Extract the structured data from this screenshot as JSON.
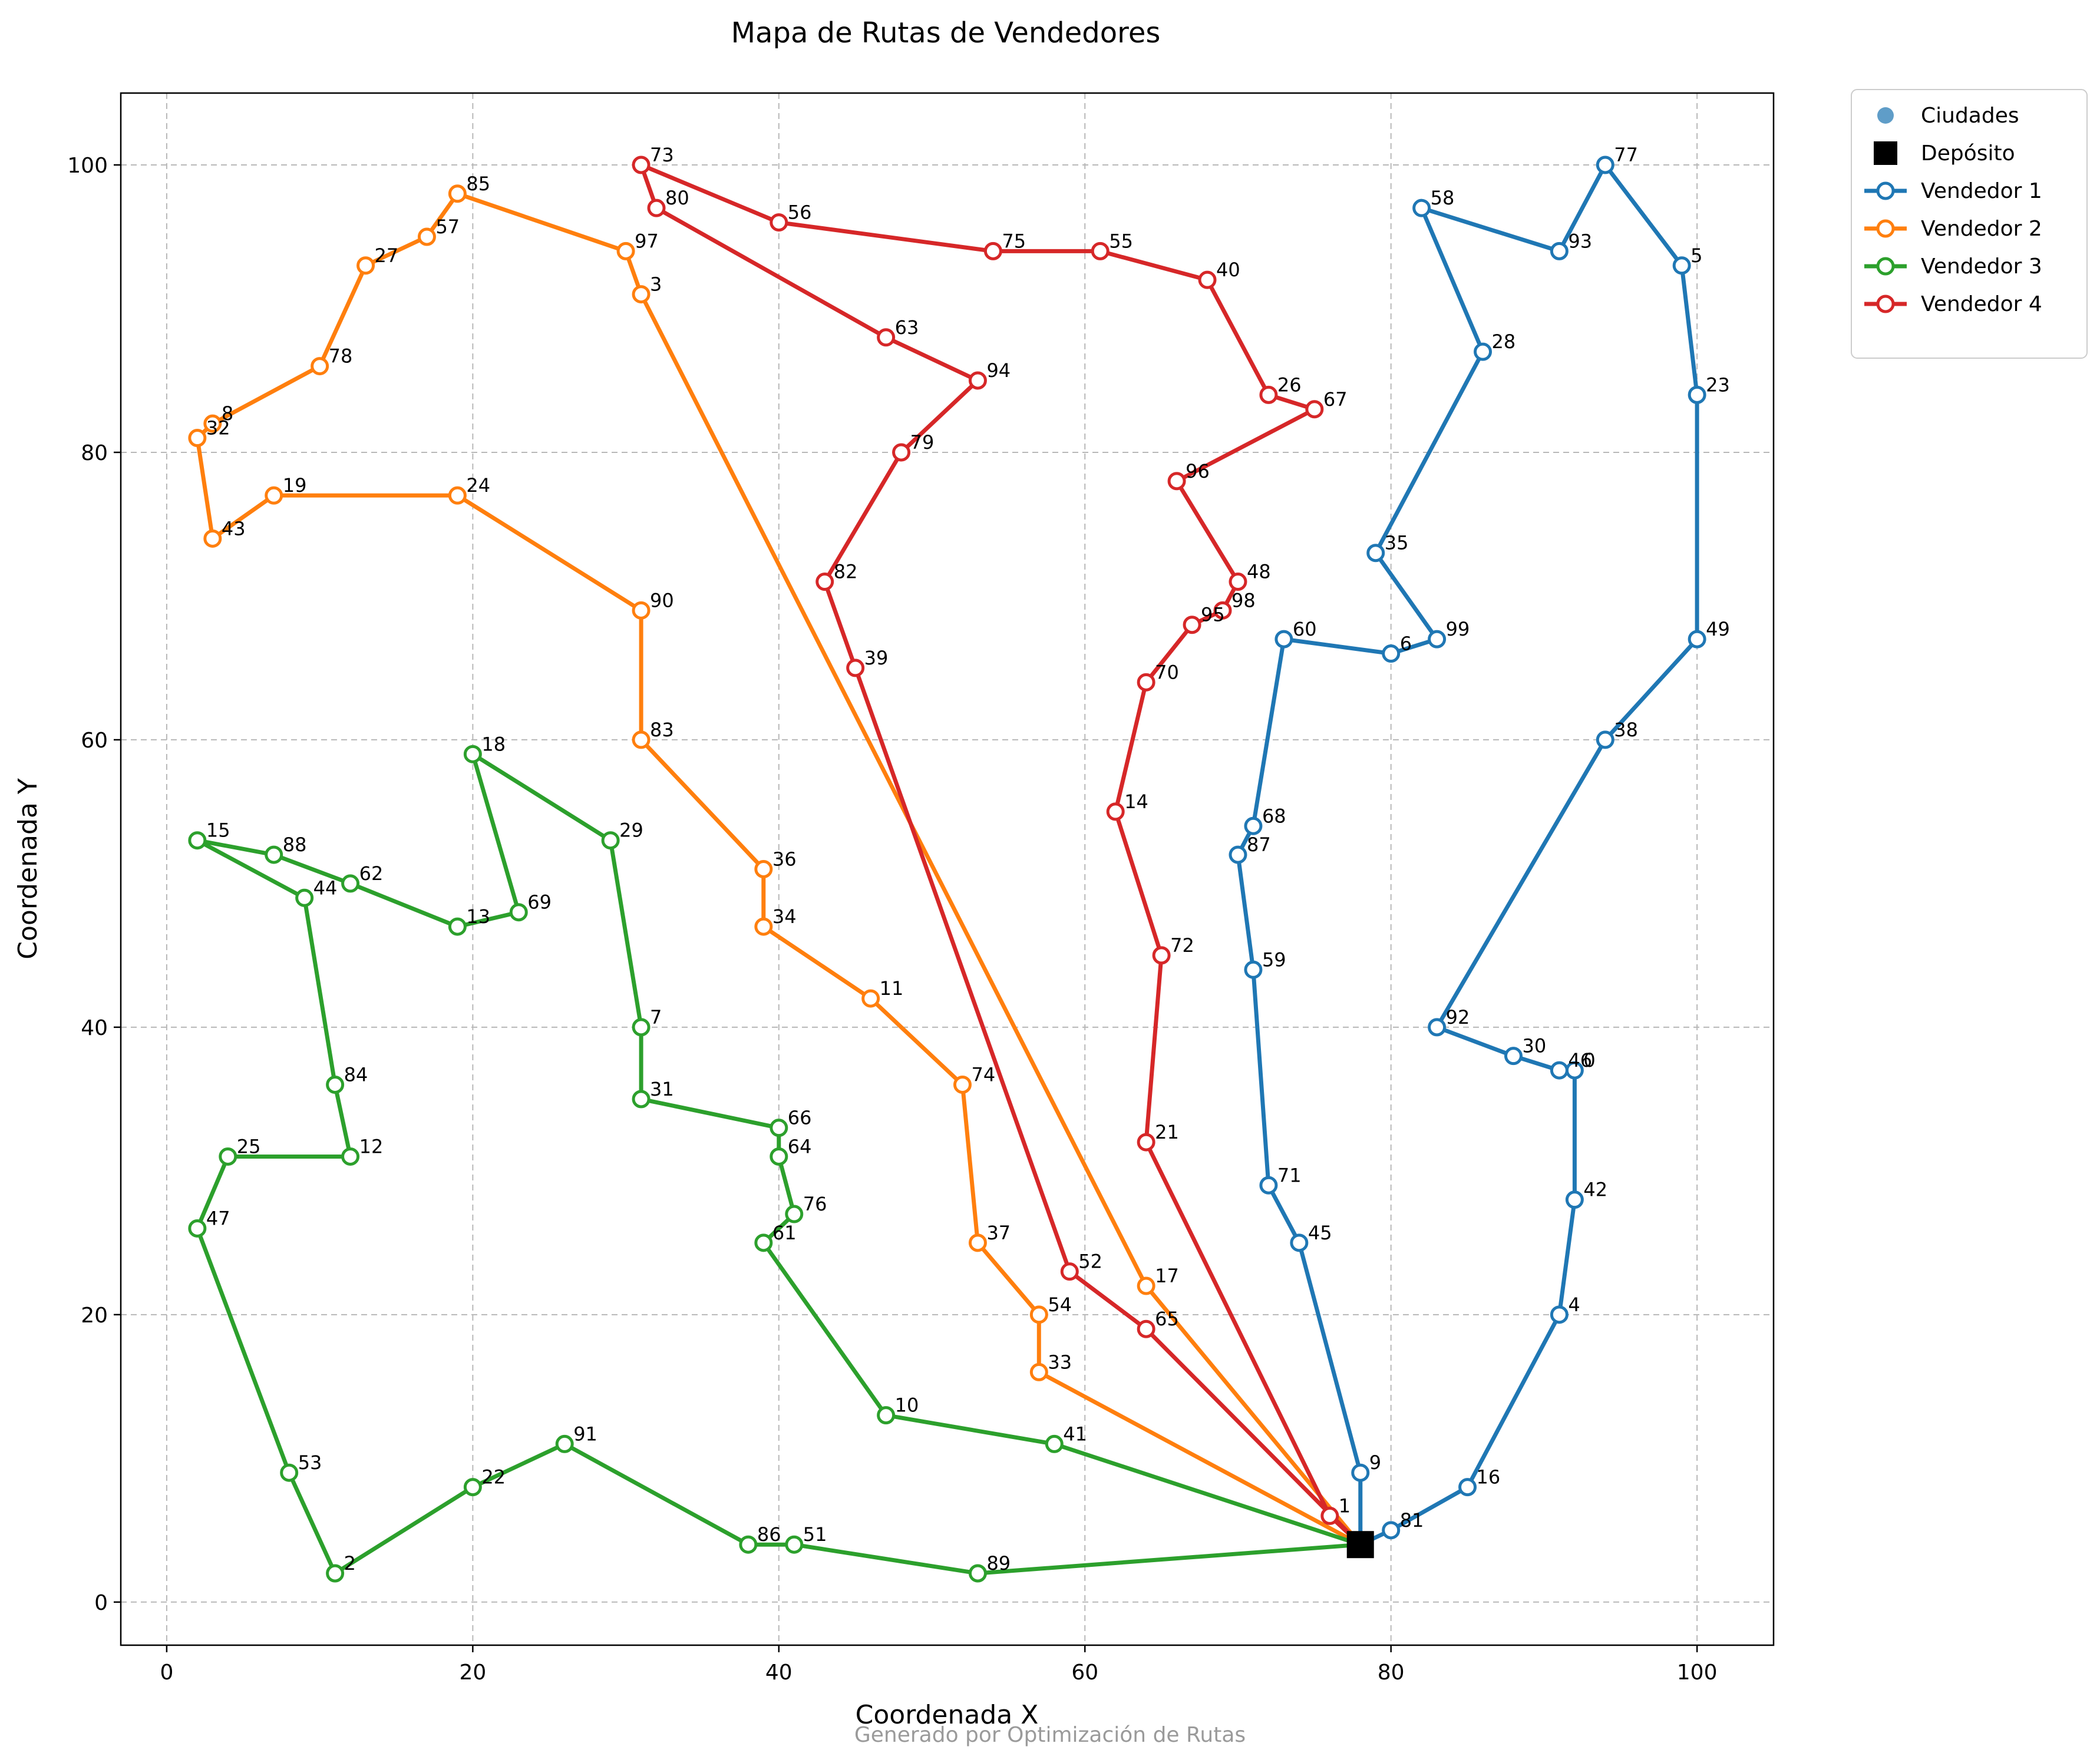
{
  "chart_data": {
    "type": "line",
    "title": "Mapa de Rutas de Vendedores",
    "xlabel": "Coordenada X",
    "ylabel": "Coordenada Y",
    "xlim": [
      -3,
      105
    ],
    "ylim": [
      -3,
      105
    ],
    "xticks": [
      "0",
      "20",
      "40",
      "60",
      "80",
      "100"
    ],
    "yticks": [
      "0",
      "20",
      "40",
      "60",
      "80",
      "100"
    ],
    "grid": true,
    "legend_position": "outside-top-right",
    "footer": "Generado por Optimización de Rutas",
    "depot": {
      "name": "Depósito",
      "x": 78,
      "y": 4,
      "color": "#000000"
    },
    "cities_legend": {
      "name": "Ciudades",
      "color": "#5f9dc8"
    },
    "series": [
      {
        "name": "Vendedor 1",
        "color": "#1f77b4",
        "stops": [
          {
            "id": "81",
            "x": 80,
            "y": 5
          },
          {
            "id": "16",
            "x": 85,
            "y": 8
          },
          {
            "id": "4",
            "x": 91,
            "y": 20
          },
          {
            "id": "42",
            "x": 92,
            "y": 28
          },
          {
            "id": "0",
            "x": 92,
            "y": 37
          },
          {
            "id": "46",
            "x": 91,
            "y": 37
          },
          {
            "id": "30",
            "x": 88,
            "y": 38
          },
          {
            "id": "92",
            "x": 83,
            "y": 40
          },
          {
            "id": "38",
            "x": 94,
            "y": 60
          },
          {
            "id": "49",
            "x": 100,
            "y": 67
          },
          {
            "id": "23",
            "x": 100,
            "y": 84
          },
          {
            "id": "5",
            "x": 99,
            "y": 93
          },
          {
            "id": "77",
            "x": 94,
            "y": 100
          },
          {
            "id": "93",
            "x": 91,
            "y": 94
          },
          {
            "id": "58",
            "x": 82,
            "y": 97
          },
          {
            "id": "28",
            "x": 86,
            "y": 87
          },
          {
            "id": "35",
            "x": 79,
            "y": 73
          },
          {
            "id": "99",
            "x": 83,
            "y": 67
          },
          {
            "id": "6",
            "x": 80,
            "y": 66
          },
          {
            "id": "60",
            "x": 73,
            "y": 67
          },
          {
            "id": "68",
            "x": 71,
            "y": 54
          },
          {
            "id": "87",
            "x": 70,
            "y": 52
          },
          {
            "id": "59",
            "x": 71,
            "y": 44
          },
          {
            "id": "71",
            "x": 72,
            "y": 29
          },
          {
            "id": "45",
            "x": 74,
            "y": 25
          },
          {
            "id": "9",
            "x": 78,
            "y": 9
          }
        ]
      },
      {
        "name": "Vendedor 2",
        "color": "#ff7f0e",
        "stops": [
          {
            "id": "33",
            "x": 57,
            "y": 16
          },
          {
            "id": "54",
            "x": 57,
            "y": 20
          },
          {
            "id": "37",
            "x": 53,
            "y": 25
          },
          {
            "id": "74",
            "x": 52,
            "y": 36
          },
          {
            "id": "11",
            "x": 46,
            "y": 42
          },
          {
            "id": "34",
            "x": 39,
            "y": 47
          },
          {
            "id": "36",
            "x": 39,
            "y": 51
          },
          {
            "id": "83",
            "x": 31,
            "y": 60
          },
          {
            "id": "90",
            "x": 31,
            "y": 69
          },
          {
            "id": "24",
            "x": 19,
            "y": 77
          },
          {
            "id": "19",
            "x": 7,
            "y": 77
          },
          {
            "id": "43",
            "x": 3,
            "y": 74
          },
          {
            "id": "32",
            "x": 2,
            "y": 81
          },
          {
            "id": "8",
            "x": 3,
            "y": 82
          },
          {
            "id": "78",
            "x": 10,
            "y": 86
          },
          {
            "id": "27",
            "x": 13,
            "y": 93
          },
          {
            "id": "57",
            "x": 17,
            "y": 95
          },
          {
            "id": "85",
            "x": 19,
            "y": 98
          },
          {
            "id": "97",
            "x": 30,
            "y": 94
          },
          {
            "id": "3",
            "x": 31,
            "y": 91
          },
          {
            "id": "17",
            "x": 64,
            "y": 22
          }
        ]
      },
      {
        "name": "Vendedor 3",
        "color": "#2ca02c",
        "stops": [
          {
            "id": "41",
            "x": 58,
            "y": 11
          },
          {
            "id": "10",
            "x": 47,
            "y": 13
          },
          {
            "id": "61",
            "x": 39,
            "y": 25
          },
          {
            "id": "76",
            "x": 41,
            "y": 27
          },
          {
            "id": "64",
            "x": 40,
            "y": 31
          },
          {
            "id": "66",
            "x": 40,
            "y": 33
          },
          {
            "id": "31",
            "x": 31,
            "y": 35
          },
          {
            "id": "7",
            "x": 31,
            "y": 40
          },
          {
            "id": "29",
            "x": 29,
            "y": 53
          },
          {
            "id": "18",
            "x": 20,
            "y": 59
          },
          {
            "id": "69",
            "x": 23,
            "y": 48
          },
          {
            "id": "13",
            "x": 19,
            "y": 47
          },
          {
            "id": "62",
            "x": 12,
            "y": 50
          },
          {
            "id": "88",
            "x": 7,
            "y": 52
          },
          {
            "id": "15",
            "x": 2,
            "y": 53
          },
          {
            "id": "44",
            "x": 9,
            "y": 49
          },
          {
            "id": "84",
            "x": 11,
            "y": 36
          },
          {
            "id": "12",
            "x": 12,
            "y": 31
          },
          {
            "id": "25",
            "x": 4,
            "y": 31
          },
          {
            "id": "47",
            "x": 2,
            "y": 26
          },
          {
            "id": "53",
            "x": 8,
            "y": 9
          },
          {
            "id": "2",
            "x": 11,
            "y": 2
          },
          {
            "id": "22",
            "x": 20,
            "y": 8
          },
          {
            "id": "91",
            "x": 26,
            "y": 11
          },
          {
            "id": "86",
            "x": 38,
            "y": 4
          },
          {
            "id": "51",
            "x": 41,
            "y": 4
          },
          {
            "id": "89",
            "x": 53,
            "y": 2
          }
        ]
      },
      {
        "name": "Vendedor 4",
        "color": "#d62728",
        "stops": [
          {
            "id": "1",
            "x": 76,
            "y": 6
          },
          {
            "id": "21",
            "x": 64,
            "y": 32
          },
          {
            "id": "72",
            "x": 65,
            "y": 45
          },
          {
            "id": "14",
            "x": 62,
            "y": 55
          },
          {
            "id": "70",
            "x": 64,
            "y": 64
          },
          {
            "id": "95",
            "x": 67,
            "y": 68
          },
          {
            "id": "98",
            "x": 69,
            "y": 69
          },
          {
            "id": "48",
            "x": 70,
            "y": 71
          },
          {
            "id": "96",
            "x": 66,
            "y": 78
          },
          {
            "id": "67",
            "x": 75,
            "y": 83
          },
          {
            "id": "26",
            "x": 72,
            "y": 84
          },
          {
            "id": "40",
            "x": 68,
            "y": 92
          },
          {
            "id": "55",
            "x": 61,
            "y": 94
          },
          {
            "id": "75",
            "x": 54,
            "y": 94
          },
          {
            "id": "56",
            "x": 40,
            "y": 96
          },
          {
            "id": "73",
            "x": 31,
            "y": 100
          },
          {
            "id": "80",
            "x": 32,
            "y": 97
          },
          {
            "id": "63",
            "x": 47,
            "y": 88
          },
          {
            "id": "94",
            "x": 53,
            "y": 85
          },
          {
            "id": "79",
            "x": 48,
            "y": 80
          },
          {
            "id": "82",
            "x": 43,
            "y": 71
          },
          {
            "id": "39",
            "x": 45,
            "y": 65
          },
          {
            "id": "52",
            "x": 59,
            "y": 23
          },
          {
            "id": "65",
            "x": 64,
            "y": 19
          }
        ]
      }
    ]
  }
}
